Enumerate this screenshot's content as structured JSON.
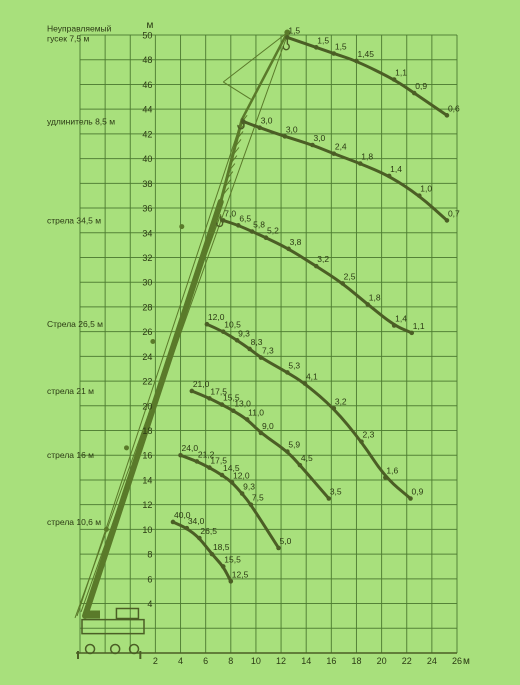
{
  "chart_data": {
    "type": "line",
    "xlabel": "",
    "x_unit": "м",
    "y_unit": "м",
    "xlim": [
      -4,
      26
    ],
    "ylim": [
      0,
      50
    ],
    "grid": true,
    "x_ticks": [
      2,
      4,
      6,
      8,
      10,
      12,
      14,
      16,
      18,
      20,
      22,
      24,
      26
    ],
    "y_ticks": [
      4,
      6,
      8,
      10,
      12,
      14,
      16,
      18,
      20,
      22,
      24,
      26,
      28,
      30,
      32,
      34,
      36,
      38,
      40,
      42,
      44,
      46,
      48,
      50
    ],
    "colors": {
      "background": "#a8e07c",
      "grid": "#4c7a30",
      "curve": "#4b5e25",
      "boom": "#5a7a2a",
      "text": "#2b3a14"
    },
    "series": [
      {
        "name": "Неуправляемый гусек 7,5 м",
        "points": [
          [
            12.5,
            49.8
          ],
          [
            14.8,
            49.0
          ],
          [
            16.2,
            48.5
          ],
          [
            18.0,
            47.9
          ],
          [
            21.0,
            46.4
          ],
          [
            22.6,
            45.3
          ],
          [
            25.2,
            43.5
          ]
        ],
        "labels": [
          "1,5",
          "1,5",
          "1,5",
          "1,45",
          "1,1",
          "0,9",
          "0,6"
        ]
      },
      {
        "name": "удлинитель 8,5 м",
        "points": [
          [
            9.0,
            43.0
          ],
          [
            10.3,
            42.5
          ],
          [
            12.3,
            41.8
          ],
          [
            14.5,
            41.1
          ],
          [
            16.2,
            40.4
          ],
          [
            18.3,
            39.6
          ],
          [
            20.6,
            38.6
          ],
          [
            23.0,
            37.0
          ],
          [
            25.2,
            35.0
          ]
        ],
        "labels": [
          "",
          "3,0",
          "3,0",
          "3,0",
          "2,4",
          "1,8",
          "1,4",
          "1,0",
          "0,7"
        ]
      },
      {
        "name": "стрела 34,5 м",
        "points": [
          [
            7.4,
            35.0
          ],
          [
            8.6,
            34.6
          ],
          [
            9.7,
            34.1
          ],
          [
            10.8,
            33.6
          ],
          [
            12.6,
            32.7
          ],
          [
            14.8,
            31.3
          ],
          [
            16.9,
            29.9
          ],
          [
            18.9,
            28.2
          ],
          [
            21.0,
            26.5
          ],
          [
            22.4,
            25.9
          ]
        ],
        "labels": [
          "7,0",
          "6,5",
          "5,8",
          "5,2",
          "3,8",
          "3,2",
          "2,5",
          "1,8",
          "1,4",
          "1,1"
        ]
      },
      {
        "name": "Стрела 26,5 м",
        "points": [
          [
            6.1,
            26.6
          ],
          [
            7.4,
            26.0
          ],
          [
            8.5,
            25.3
          ],
          [
            9.5,
            24.6
          ],
          [
            10.4,
            23.9
          ],
          [
            12.5,
            22.7
          ],
          [
            13.9,
            21.8
          ],
          [
            16.2,
            19.8
          ],
          [
            18.4,
            17.1
          ],
          [
            20.3,
            14.2
          ],
          [
            22.3,
            12.5
          ]
        ],
        "labels": [
          "12,0",
          "10,5",
          "9,3",
          "8,3",
          "7,3",
          "5,3",
          "4,1",
          "3,2",
          "2,3",
          "1,6",
          "0,9"
        ]
      },
      {
        "name": "стрела 21 м",
        "points": [
          [
            4.9,
            21.2
          ],
          [
            6.3,
            20.6
          ],
          [
            7.3,
            20.1
          ],
          [
            8.2,
            19.6
          ],
          [
            9.3,
            18.9
          ],
          [
            10.4,
            17.8
          ],
          [
            12.5,
            16.3
          ],
          [
            13.5,
            15.2
          ],
          [
            15.8,
            12.5
          ]
        ],
        "labels": [
          "21,0",
          "17,5",
          "15,5",
          "13,0",
          "11,0",
          "9,0",
          "5,9",
          "4,5",
          "3,5"
        ]
      },
      {
        "name": "стрела 16 м",
        "points": [
          [
            4.0,
            16.0
          ],
          [
            5.3,
            15.5
          ],
          [
            6.3,
            15.0
          ],
          [
            7.3,
            14.4
          ],
          [
            8.1,
            13.8
          ],
          [
            8.9,
            12.9
          ],
          [
            9.6,
            12.0
          ],
          [
            11.8,
            8.5
          ]
        ],
        "labels": [
          "24,0",
          "21,2",
          "17,5",
          "14,5",
          "12,0",
          "9,3",
          "7,5",
          "5,0"
        ]
      },
      {
        "name": "стрела 10,6 м",
        "points": [
          [
            3.4,
            10.6
          ],
          [
            4.5,
            10.1
          ],
          [
            5.5,
            9.3
          ],
          [
            6.5,
            8.0
          ],
          [
            7.4,
            7.0
          ],
          [
            8.0,
            5.8
          ]
        ],
        "labels": [
          "40,0",
          "34,0",
          "26,5",
          "18,5",
          "15,5",
          "12,5"
        ]
      }
    ]
  }
}
